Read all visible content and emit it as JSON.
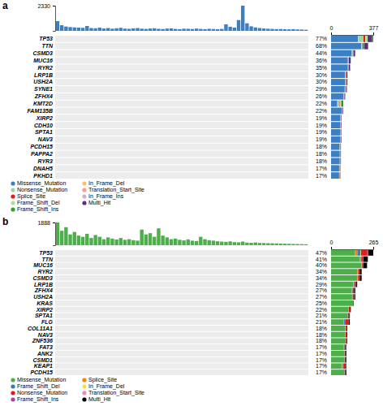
{
  "chart_data": [
    {
      "type": "bar",
      "title": "a",
      "orientation": "horizontal",
      "stacked": true,
      "legend": "bottom",
      "categories": [
        "TP53",
        "TTN",
        "CSMD3",
        "MUC16",
        "RYR2",
        "LRP1B",
        "USH2A",
        "SYNE1",
        "ZFHX4",
        "KMT2D",
        "FAM135B",
        "XIRP2",
        "CDH10",
        "SPTA1",
        "NAV3",
        "PCDH15",
        "PAPPA2",
        "RYR3",
        "DNAH5",
        "PKHD1"
      ],
      "percent_labels": [
        "77%",
        "68%",
        "44%",
        "36%",
        "35%",
        "30%",
        "30%",
        "29%",
        "26%",
        "22%",
        "22%",
        "19%",
        "19%",
        "19%",
        "19%",
        "18%",
        "18%",
        "18%",
        "17%",
        "17%"
      ],
      "xlim": [
        0,
        377
      ],
      "xticks": [
        0,
        377
      ],
      "series": [
        {
          "name": "Missense_Mutation",
          "color": "#3d7fc5",
          "values": [
            240,
            270,
            185,
            150,
            150,
            125,
            128,
            122,
            112,
            55,
            96,
            82,
            84,
            80,
            80,
            76,
            78,
            78,
            72,
            72
          ]
        },
        {
          "name": "In_Frame_Del",
          "color": "#fdbf6f",
          "values": [
            5,
            0,
            0,
            1,
            0,
            0,
            0,
            0,
            0,
            2,
            0,
            0,
            0,
            0,
            0,
            0,
            0,
            0,
            0,
            0
          ]
        },
        {
          "name": "Nonsense_Mutation",
          "color": "#9fd3a6",
          "values": [
            45,
            12,
            10,
            4,
            5,
            8,
            6,
            7,
            4,
            20,
            4,
            4,
            3,
            5,
            5,
            5,
            4,
            4,
            4,
            4
          ]
        },
        {
          "name": "Translation_Start_Site",
          "color": "#fb9a99",
          "values": [
            0,
            0,
            0,
            0,
            0,
            0,
            0,
            0,
            0,
            0,
            0,
            0,
            0,
            0,
            0,
            0,
            0,
            0,
            0,
            0
          ]
        },
        {
          "name": "Splice_Site",
          "color": "#e31a1c",
          "values": [
            15,
            8,
            4,
            2,
            3,
            4,
            3,
            3,
            2,
            5,
            2,
            2,
            2,
            2,
            2,
            2,
            2,
            2,
            2,
            2
          ]
        },
        {
          "name": "In_Frame_Ins",
          "color": "#cab2d6",
          "values": [
            2,
            0,
            0,
            0,
            0,
            0,
            0,
            0,
            0,
            0,
            0,
            0,
            0,
            0,
            0,
            0,
            0,
            0,
            0,
            0
          ]
        },
        {
          "name": "Frame_Shift_Del",
          "color": "#b2df8a",
          "values": [
            20,
            5,
            2,
            2,
            1,
            1,
            2,
            2,
            2,
            12,
            1,
            1,
            0,
            1,
            1,
            1,
            0,
            0,
            1,
            1
          ]
        },
        {
          "name": "Multi_Hit",
          "color": "#5b2c83",
          "values": [
            40,
            35,
            14,
            16,
            11,
            8,
            7,
            7,
            6,
            8,
            5,
            4,
            4,
            4,
            5,
            4,
            4,
            4,
            4,
            4
          ]
        },
        {
          "name": "Frame_Shift_Ins",
          "color": "#33a02c",
          "values": [
            10,
            3,
            1,
            1,
            1,
            1,
            1,
            1,
            1,
            6,
            0,
            0,
            0,
            1,
            0,
            0,
            0,
            0,
            0,
            0
          ]
        }
      ],
      "sample_counts": {
        "color": "#3d7fc5",
        "ylim": [
          0,
          2330
        ],
        "yticks": [
          2330
        ],
        "values": [
          900,
          520,
          400,
          350,
          320,
          300,
          280,
          450,
          260,
          240,
          300,
          220,
          260,
          200,
          240,
          280,
          210,
          190,
          230,
          260,
          200,
          180,
          220,
          240,
          190,
          170,
          210,
          230,
          180,
          160,
          200,
          190,
          170,
          210,
          180,
          160,
          190,
          170,
          150,
          180,
          600,
          380,
          300,
          1000,
          2330,
          700,
          420,
          320,
          260,
          220,
          200,
          180,
          160,
          170,
          150,
          140,
          160,
          130,
          120,
          100
        ]
      }
    },
    {
      "type": "bar",
      "title": "b",
      "orientation": "horizontal",
      "stacked": true,
      "legend": "bottom",
      "categories": [
        "TP53",
        "TTN",
        "MUC16",
        "RYR2",
        "CSMD3",
        "LRP1B",
        "ZFHX4",
        "USH2A",
        "KRAS",
        "XIRP2",
        "SPTA1",
        "FLG",
        "COL11A1",
        "NAV3",
        "ZNF536",
        "FAT3",
        "ANK2",
        "CSMD1",
        "KEAP1",
        "PCDH15"
      ],
      "percent_labels": [
        "47%",
        "41%",
        "40%",
        "34%",
        "34%",
        "29%",
        "27%",
        "27%",
        "25%",
        "22%",
        "21%",
        "21%",
        "18%",
        "18%",
        "18%",
        "17%",
        "17%",
        "17%",
        "17%",
        "17%"
      ],
      "xlim": [
        0,
        265
      ],
      "xticks": [
        0,
        265
      ],
      "series": [
        {
          "name": "Missense_Mutation",
          "color": "#4daf4a",
          "values": [
            150,
            180,
            190,
            165,
            165,
            140,
            130,
            132,
            138,
            108,
            102,
            80,
            90,
            88,
            92,
            80,
            82,
            82,
            65,
            82
          ]
        },
        {
          "name": "Splice_Site",
          "color": "#ff7f00",
          "values": [
            15,
            6,
            3,
            4,
            3,
            4,
            3,
            3,
            0,
            2,
            3,
            2,
            2,
            2,
            1,
            2,
            2,
            2,
            3,
            2
          ]
        },
        {
          "name": "Frame_Shift_Del",
          "color": "#377eb8",
          "values": [
            20,
            4,
            2,
            2,
            2,
            2,
            3,
            2,
            0,
            2,
            2,
            6,
            1,
            2,
            1,
            3,
            2,
            2,
            7,
            2
          ]
        },
        {
          "name": "In_Frame_Del",
          "color": "#f0e442",
          "values": [
            3,
            0,
            0,
            0,
            0,
            0,
            0,
            0,
            0,
            0,
            0,
            0,
            0,
            0,
            0,
            0,
            0,
            0,
            2,
            0
          ]
        },
        {
          "name": "Nonsense_Mutation",
          "color": "#e41a1c",
          "values": [
            40,
            11,
            6,
            8,
            9,
            10,
            8,
            8,
            0,
            7,
            6,
            20,
            5,
            6,
            4,
            7,
            6,
            6,
            15,
            6
          ]
        },
        {
          "name": "Translation_Start_Site",
          "color": "#f781bf",
          "values": [
            0,
            0,
            0,
            0,
            0,
            0,
            0,
            0,
            0,
            0,
            0,
            0,
            0,
            0,
            0,
            0,
            0,
            0,
            0,
            0
          ]
        },
        {
          "name": "Frame_Shift_Ins",
          "color": "#984ea3",
          "values": [
            7,
            2,
            1,
            1,
            1,
            1,
            1,
            1,
            0,
            0,
            1,
            2,
            0,
            0,
            0,
            1,
            0,
            0,
            1,
            0
          ]
        },
        {
          "name": "Multi_Hit",
          "color": "#000000",
          "values": [
            30,
            28,
            24,
            12,
            12,
            7,
            7,
            6,
            3,
            5,
            4,
            8,
            4,
            4,
            4,
            3,
            4,
            4,
            3,
            4
          ]
        }
      ],
      "sample_counts": {
        "color": "#4daf4a",
        "ylim": [
          0,
          1888
        ],
        "yticks": [
          1888
        ],
        "values": [
          1888,
          1200,
          1500,
          900,
          1100,
          800,
          700,
          950,
          600,
          850,
          700,
          500,
          650,
          550,
          480,
          600,
          450,
          500,
          420,
          380,
          1300,
          900,
          1000,
          700,
          1400,
          800,
          650,
          500,
          550,
          450,
          400,
          480,
          380,
          350,
          700,
          500,
          420,
          380,
          330,
          300,
          280,
          320,
          260,
          240,
          300,
          220,
          200,
          230,
          190,
          180,
          170,
          160,
          150,
          140,
          130,
          120,
          110,
          100,
          90,
          80
        ]
      }
    }
  ]
}
